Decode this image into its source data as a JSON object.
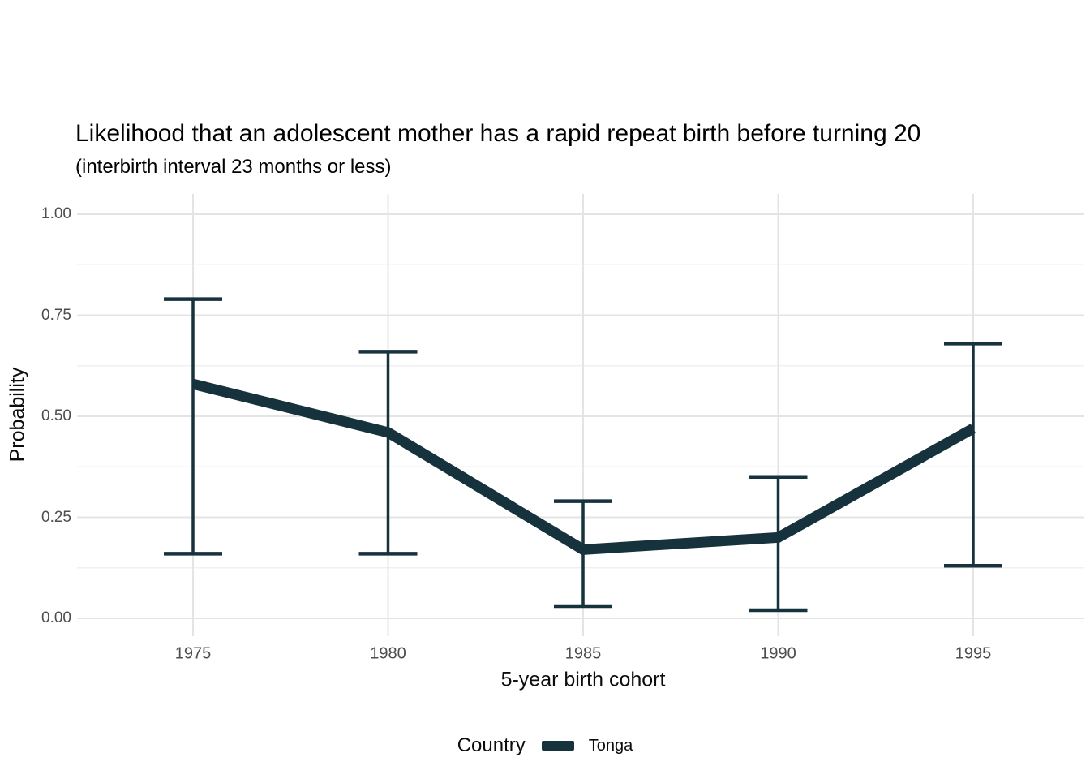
{
  "title": "Likelihood that an adolescent mother has a rapid repeat birth before turning 20",
  "subtitle": "(interbirth interval 23 months or less)",
  "chart_data": {
    "type": "line",
    "x": [
      1975,
      1980,
      1985,
      1990,
      1995
    ],
    "x_tick_labels": [
      "1975",
      "1980",
      "1985",
      "1990",
      "1995"
    ],
    "series": [
      {
        "name": "Tonga",
        "values": [
          0.58,
          0.46,
          0.17,
          0.2,
          0.47
        ],
        "ci_low": [
          0.16,
          0.16,
          0.03,
          0.02,
          0.13
        ],
        "ci_high": [
          0.79,
          0.66,
          0.29,
          0.35,
          0.68
        ],
        "color": "#16323d"
      }
    ],
    "title": "Likelihood that an adolescent mother has a rapid repeat birth before turning 20",
    "subtitle": "(interbirth interval 23 months or less)",
    "xlabel": "5-year birth cohort",
    "ylabel": "Probability",
    "xlim": [
      1972,
      1998
    ],
    "ylim": [
      0,
      1
    ],
    "y_ticks": [
      0,
      0.25,
      0.5,
      0.75,
      1
    ],
    "y_tick_labels": [
      "0.00",
      "0.25",
      "0.50",
      "0.75",
      "1.00"
    ],
    "y_minor_ticks": [
      0.125,
      0.375,
      0.625,
      0.875
    ],
    "grid": true,
    "error_bars": true,
    "legend": {
      "title": "Country",
      "entries": [
        "Tonga"
      ],
      "position": "bottom"
    },
    "colors": {
      "series": "#16323d",
      "grid_major": "#e4e4e4",
      "grid_minor": "#f0f0f0",
      "tick_text": "#4d4d4d",
      "background": "#ffffff"
    }
  }
}
